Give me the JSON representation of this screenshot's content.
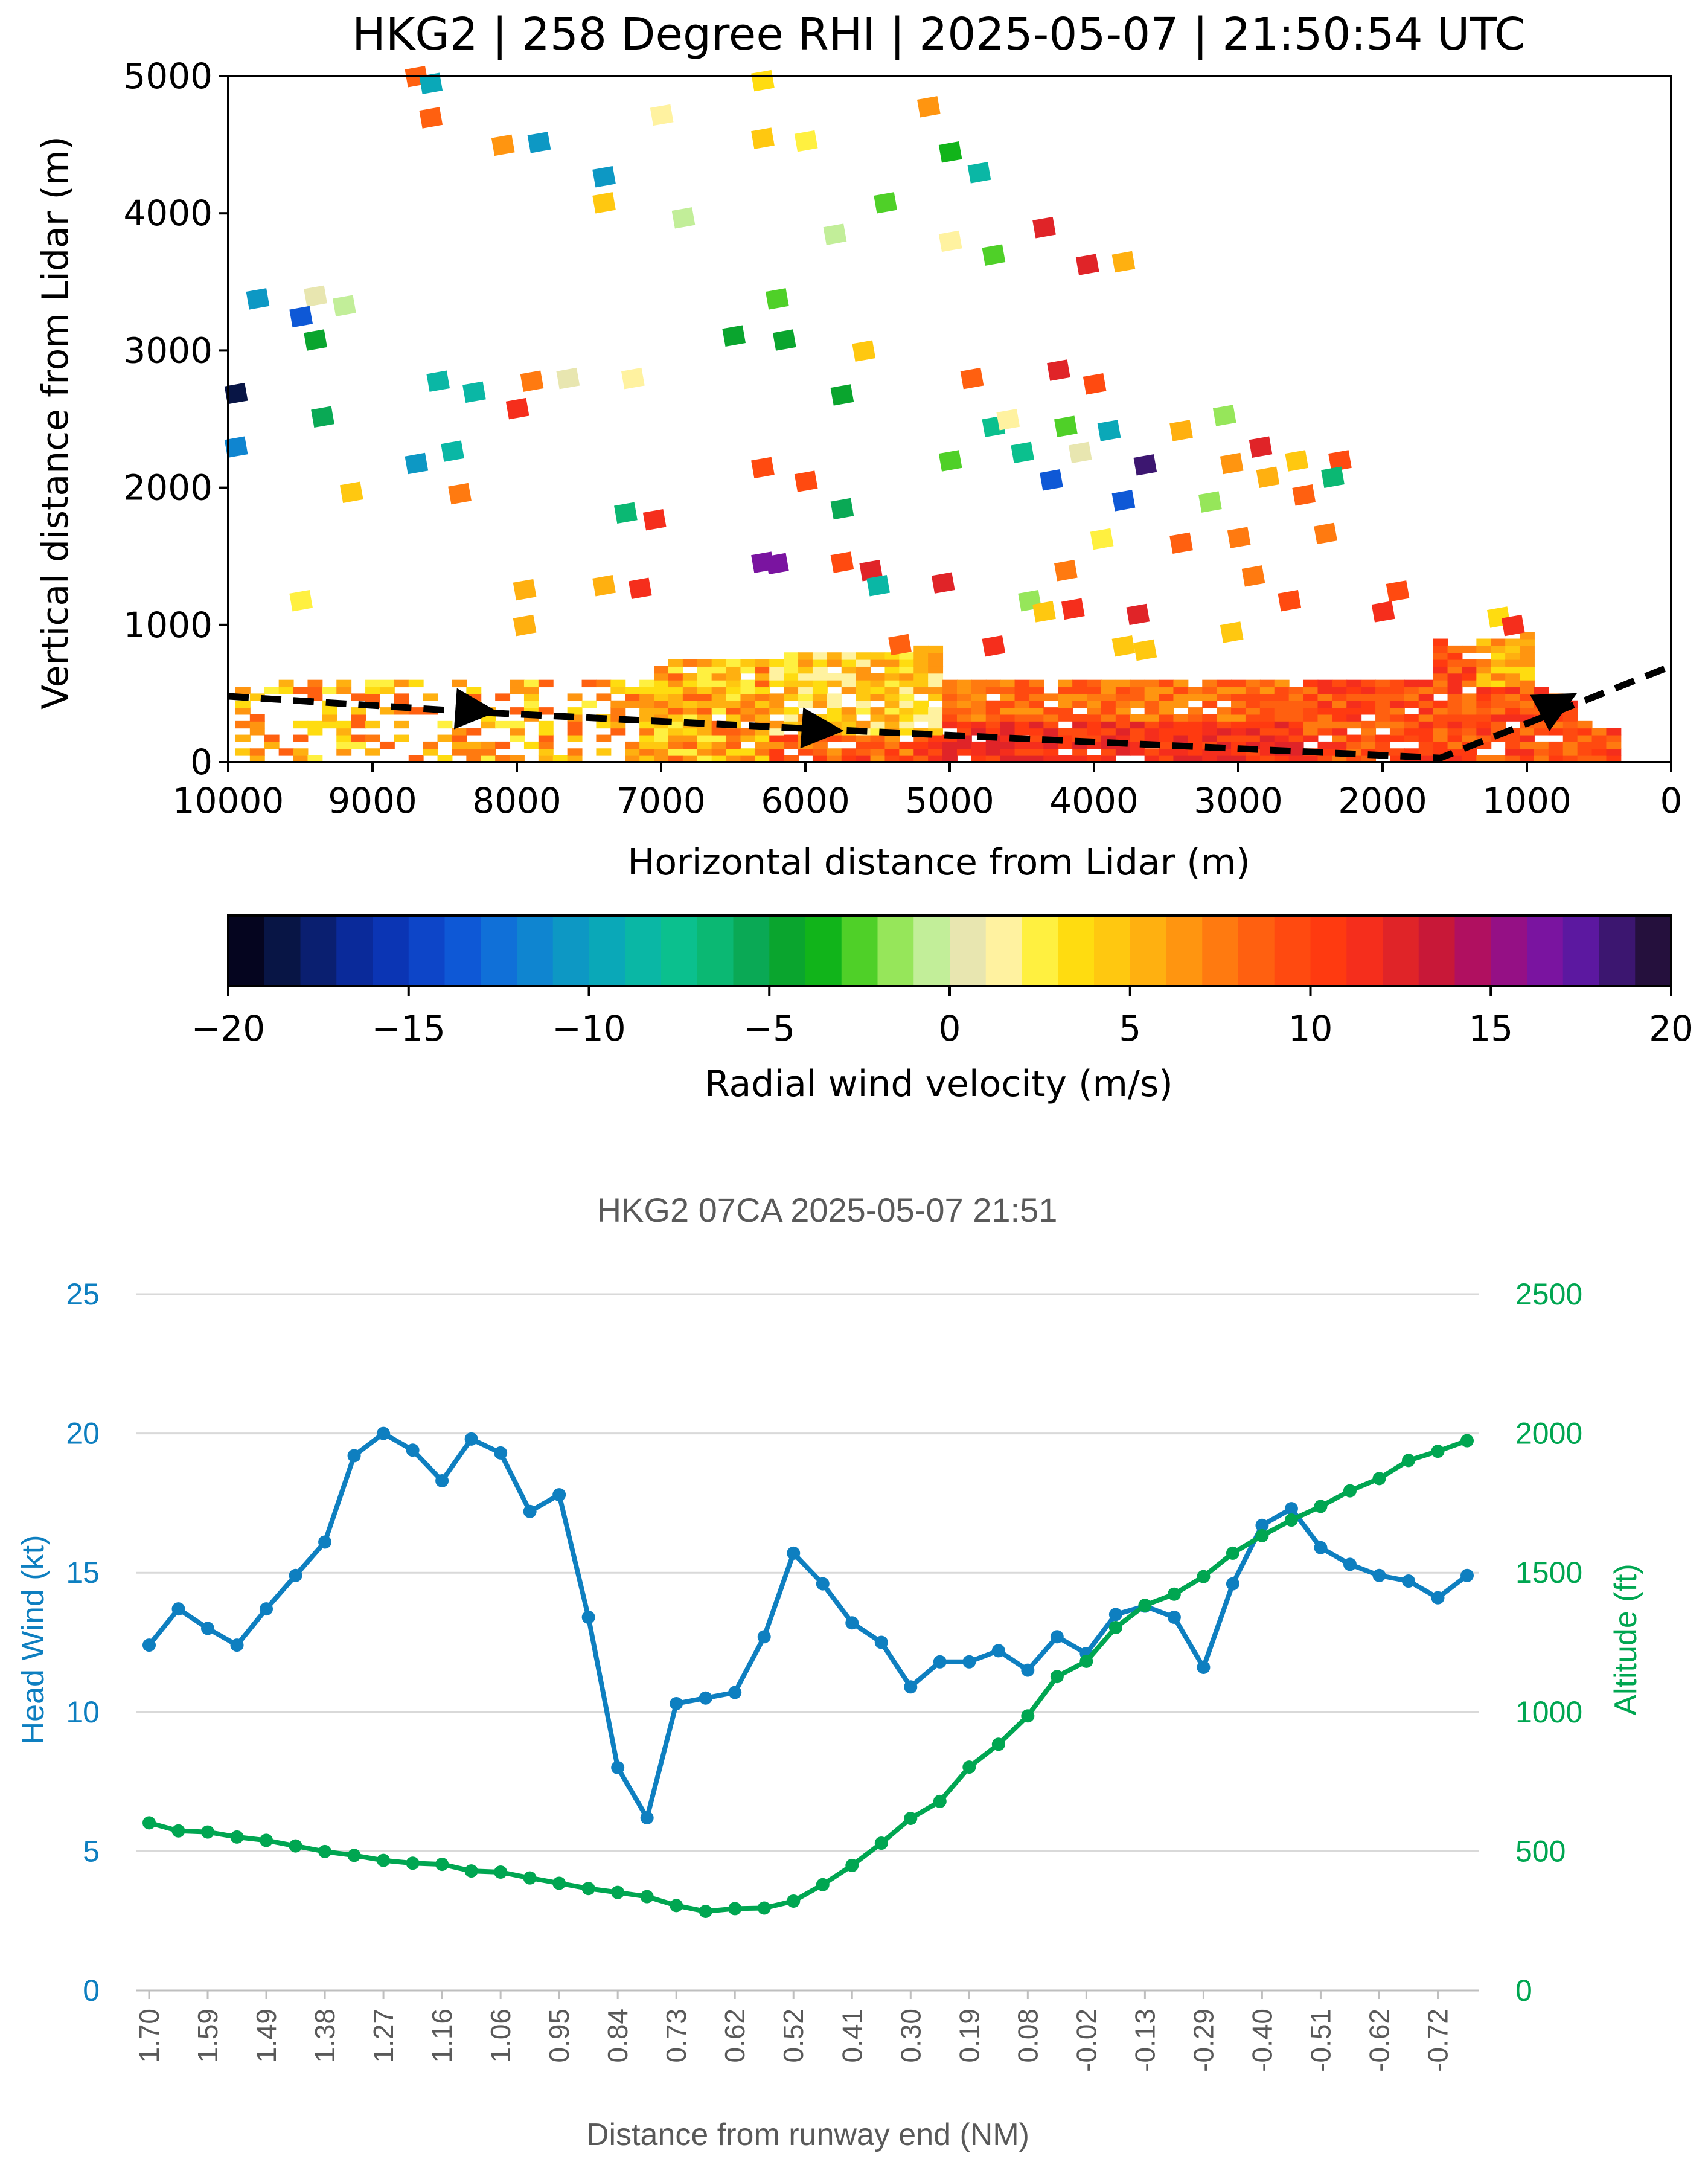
{
  "chart_data": [
    {
      "type": "heatmap",
      "title": "HKG2 | 258 Degree RHI | 2025-05-07 | 21:50:54 UTC",
      "xlabel": "Horizontal distance from Lidar (m)",
      "ylabel": "Vertical distance from Lidar (m)",
      "xlim": [
        10000,
        0
      ],
      "ylim": [
        0,
        5000
      ],
      "xticks": [
        10000,
        9000,
        8000,
        7000,
        6000,
        5000,
        4000,
        3000,
        2000,
        1000,
        0
      ],
      "yticks": [
        0,
        1000,
        2000,
        3000,
        4000,
        5000
      ],
      "colorbar": {
        "label": "Radial wind velocity (m/s)",
        "min": -20,
        "max": 20,
        "ticks": [
          "−20",
          "−15",
          "−10",
          "−5",
          "0",
          "5",
          "10",
          "15",
          "20"
        ],
        "colors": [
          "#05051f",
          "#081545",
          "#0a1f70",
          "#0a2a9a",
          "#0b35b4",
          "#0d45c8",
          "#0e58d6",
          "#1070d8",
          "#0f85d0",
          "#0d98c4",
          "#0aa8b8",
          "#0ab7a5",
          "#0bc08e",
          "#0bb873",
          "#0aa955",
          "#0aa52e",
          "#11b41a",
          "#4fd028",
          "#96e65a",
          "#c2ee99",
          "#e8e6b0",
          "#fff2a0",
          "#fff040",
          "#ffdc10",
          "#ffc810",
          "#ffb010",
          "#ff9510",
          "#ff7a10",
          "#ff6010",
          "#ff4a10",
          "#ff3a10",
          "#f52e1c",
          "#e02428",
          "#c81838",
          "#b01060",
          "#951085",
          "#7a14a0",
          "#5c18a0",
          "#3c1670",
          "#25103d"
        ]
      },
      "flight_path": [
        [
          10000,
          480
        ],
        [
          8200,
          360
        ],
        [
          5900,
          240
        ],
        [
          1600,
          30
        ],
        [
          0,
          700
        ]
      ],
      "direction_arrows": [
        [
          8300,
          380
        ],
        [
          5900,
          240
        ],
        [
          800,
          420
        ]
      ],
      "scatter_returns": [
        {
          "x": 8700,
          "y": 5000,
          "v": 8
        },
        {
          "x": 8600,
          "y": 4950,
          "v": -10
        },
        {
          "x": 8600,
          "y": 4700,
          "v": 8
        },
        {
          "x": 8100,
          "y": 4500,
          "v": 6
        },
        {
          "x": 7850,
          "y": 4520,
          "v": -11
        },
        {
          "x": 7000,
          "y": 4720,
          "v": 1
        },
        {
          "x": 6300,
          "y": 4970,
          "v": 3
        },
        {
          "x": 6300,
          "y": 4550,
          "v": 4
        },
        {
          "x": 6000,
          "y": 4530,
          "v": 2
        },
        {
          "x": 5150,
          "y": 4780,
          "v": 6
        },
        {
          "x": 5000,
          "y": 4450,
          "v": -4
        },
        {
          "x": 4800,
          "y": 4300,
          "v": -9
        },
        {
          "x": 7400,
          "y": 4270,
          "v": -11
        },
        {
          "x": 7400,
          "y": 4080,
          "v": 4
        },
        {
          "x": 6850,
          "y": 3970,
          "v": -1
        },
        {
          "x": 5450,
          "y": 4080,
          "v": -3
        },
        {
          "x": 5800,
          "y": 3850,
          "v": -1
        },
        {
          "x": 5000,
          "y": 3800,
          "v": 1
        },
        {
          "x": 4700,
          "y": 3700,
          "v": -3
        },
        {
          "x": 4350,
          "y": 3900,
          "v": 12
        },
        {
          "x": 4050,
          "y": 3630,
          "v": 12
        },
        {
          "x": 3800,
          "y": 3650,
          "v": 5
        },
        {
          "x": 9800,
          "y": 3380,
          "v": -11
        },
        {
          "x": 9400,
          "y": 3400,
          "v": 0
        },
        {
          "x": 9500,
          "y": 3250,
          "v": -14
        },
        {
          "x": 9200,
          "y": 3330,
          "v": -1
        },
        {
          "x": 9400,
          "y": 3080,
          "v": -5
        },
        {
          "x": 9950,
          "y": 2690,
          "v": -19
        },
        {
          "x": 9950,
          "y": 2300,
          "v": -12
        },
        {
          "x": 9350,
          "y": 2520,
          "v": -6
        },
        {
          "x": 8550,
          "y": 2780,
          "v": -9
        },
        {
          "x": 8300,
          "y": 2700,
          "v": -9
        },
        {
          "x": 7900,
          "y": 2780,
          "v": 7
        },
        {
          "x": 7650,
          "y": 2800,
          "v": 0
        },
        {
          "x": 8000,
          "y": 2580,
          "v": 11
        },
        {
          "x": 7200,
          "y": 2800,
          "v": 1
        },
        {
          "x": 6500,
          "y": 3110,
          "v": -5
        },
        {
          "x": 6200,
          "y": 3380,
          "v": -3
        },
        {
          "x": 6150,
          "y": 3080,
          "v": -5
        },
        {
          "x": 5600,
          "y": 3000,
          "v": 4
        },
        {
          "x": 5750,
          "y": 2680,
          "v": -5
        },
        {
          "x": 4850,
          "y": 2800,
          "v": 8
        },
        {
          "x": 4250,
          "y": 2860,
          "v": 12
        },
        {
          "x": 4000,
          "y": 2760,
          "v": 9
        },
        {
          "x": 8700,
          "y": 2180,
          "v": -11
        },
        {
          "x": 8450,
          "y": 2270,
          "v": -9
        },
        {
          "x": 8400,
          "y": 1960,
          "v": 7
        },
        {
          "x": 9150,
          "y": 1970,
          "v": 4
        },
        {
          "x": 7250,
          "y": 1820,
          "v": -7
        },
        {
          "x": 7050,
          "y": 1770,
          "v": 11
        },
        {
          "x": 6300,
          "y": 2150,
          "v": 9
        },
        {
          "x": 6000,
          "y": 2050,
          "v": 9
        },
        {
          "x": 5750,
          "y": 1850,
          "v": -6
        },
        {
          "x": 5000,
          "y": 2200,
          "v": -3
        },
        {
          "x": 4700,
          "y": 2450,
          "v": -8
        },
        {
          "x": 4500,
          "y": 2260,
          "v": -8
        },
        {
          "x": 4600,
          "y": 2500,
          "v": 1
        },
        {
          "x": 4200,
          "y": 2450,
          "v": -3
        },
        {
          "x": 4100,
          "y": 2260,
          "v": 0
        },
        {
          "x": 4300,
          "y": 2060,
          "v": -14
        },
        {
          "x": 3900,
          "y": 2420,
          "v": -10
        },
        {
          "x": 3650,
          "y": 2170,
          "v": 18
        },
        {
          "x": 3800,
          "y": 1910,
          "v": -14
        },
        {
          "x": 3400,
          "y": 2420,
          "v": 5
        },
        {
          "x": 3100,
          "y": 2530,
          "v": -2
        },
        {
          "x": 3050,
          "y": 2180,
          "v": 6
        },
        {
          "x": 2850,
          "y": 2300,
          "v": 12
        },
        {
          "x": 2600,
          "y": 2200,
          "v": 4
        },
        {
          "x": 2300,
          "y": 2200,
          "v": 9
        },
        {
          "x": 2350,
          "y": 2080,
          "v": -7
        },
        {
          "x": 3200,
          "y": 1900,
          "v": -2
        },
        {
          "x": 2800,
          "y": 2080,
          "v": 5
        },
        {
          "x": 2550,
          "y": 1950,
          "v": 8
        },
        {
          "x": 2400,
          "y": 1670,
          "v": 7
        },
        {
          "x": 6300,
          "y": 1460,
          "v": 16
        },
        {
          "x": 6200,
          "y": 1450,
          "v": 16
        },
        {
          "x": 5750,
          "y": 1460,
          "v": 9
        },
        {
          "x": 5550,
          "y": 1400,
          "v": 12
        },
        {
          "x": 5500,
          "y": 1290,
          "v": -9
        },
        {
          "x": 5050,
          "y": 1310,
          "v": 12
        },
        {
          "x": 7150,
          "y": 1270,
          "v": 11
        },
        {
          "x": 7400,
          "y": 1290,
          "v": 5
        },
        {
          "x": 9500,
          "y": 1180,
          "v": 2
        },
        {
          "x": 7950,
          "y": 1260,
          "v": 5
        },
        {
          "x": 7950,
          "y": 1000,
          "v": 5
        },
        {
          "x": 4200,
          "y": 1400,
          "v": 7
        },
        {
          "x": 3950,
          "y": 1630,
          "v": 2
        },
        {
          "x": 3400,
          "y": 1600,
          "v": 8
        },
        {
          "x": 3000,
          "y": 1640,
          "v": 7
        },
        {
          "x": 2900,
          "y": 1360,
          "v": 7
        },
        {
          "x": 2650,
          "y": 1180,
          "v": 9
        },
        {
          "x": 2000,
          "y": 1100,
          "v": 11
        },
        {
          "x": 1900,
          "y": 1250,
          "v": 9
        },
        {
          "x": 4450,
          "y": 1180,
          "v": -2
        },
        {
          "x": 4350,
          "y": 1100,
          "v": 4
        },
        {
          "x": 4150,
          "y": 1120,
          "v": 11
        },
        {
          "x": 3700,
          "y": 1080,
          "v": 12
        },
        {
          "x": 3050,
          "y": 950,
          "v": 4
        },
        {
          "x": 5350,
          "y": 860,
          "v": 8
        },
        {
          "x": 4700,
          "y": 850,
          "v": 11
        },
        {
          "x": 3800,
          "y": 850,
          "v": 4
        },
        {
          "x": 3650,
          "y": 820,
          "v": 4
        },
        {
          "x": 1200,
          "y": 1060,
          "v": 3
        },
        {
          "x": 1100,
          "y": 1000,
          "v": 11
        }
      ]
    },
    {
      "type": "line",
      "title": "HKG2 07CA 2025-05-07 21:51",
      "xlabel": "Distance from runway end (NM)",
      "ylabel_left": "Head Wind (kt)",
      "ylabel_right": "Altitude (ft)",
      "ylim_left": [
        0,
        25
      ],
      "ylim_right": [
        0,
        2500
      ],
      "yticks_left": [
        "0",
        "5",
        "10",
        "15",
        "20",
        "25"
      ],
      "yticks_right": [
        "0",
        "500",
        "1000",
        "1500",
        "2000",
        "2500"
      ],
      "x_tick_labels": [
        "1.70",
        "1.59",
        "1.49",
        "1.38",
        "1.27",
        "1.16",
        "1.06",
        "0.95",
        "0.84",
        "0.73",
        "0.62",
        "0.52",
        "0.41",
        "0.30",
        "0.19",
        "0.08",
        "-0.02",
        "-0.13",
        "-0.29",
        "-0.40",
        "-0.51",
        "-0.62",
        "-0.72"
      ],
      "series": [
        {
          "name": "Head Wind (kt)",
          "axis": "left",
          "color": "#0e7fc0",
          "values": [
            12.4,
            13.7,
            13.0,
            12.4,
            13.7,
            14.9,
            16.1,
            19.2,
            20.0,
            19.4,
            18.3,
            19.8,
            19.3,
            17.2,
            17.8,
            13.4,
            8.0,
            6.2,
            10.3,
            10.5,
            10.7,
            12.7,
            15.7,
            14.6,
            13.2,
            12.5,
            10.9,
            11.8,
            11.8,
            12.2,
            11.5,
            12.7,
            12.1,
            13.5,
            13.8,
            13.4,
            11.6,
            14.6,
            16.7,
            17.3,
            15.9,
            15.3,
            14.9,
            14.7,
            14.1,
            14.9
          ]
        },
        {
          "name": "Altitude (ft)",
          "axis": "right",
          "color": "#00a651",
          "values": [
            602,
            573,
            569,
            551,
            539,
            519,
            499,
            485,
            467,
            457,
            453,
            429,
            425,
            404,
            385,
            366,
            352,
            337,
            305,
            284,
            294,
            296,
            321,
            380,
            449,
            529,
            618,
            679,
            802,
            884,
            986,
            1127,
            1182,
            1303,
            1383,
            1423,
            1486,
            1570,
            1633,
            1689,
            1738,
            1794,
            1838,
            1903,
            1936,
            1974
          ]
        }
      ]
    }
  ]
}
